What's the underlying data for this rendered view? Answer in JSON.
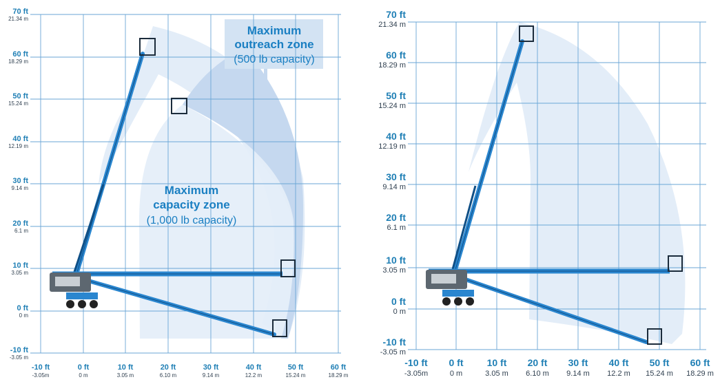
{
  "left_chart": {
    "y_labels": [
      {
        "ft": "70 ft",
        "m": "21.34 m"
      },
      {
        "ft": "60 ft",
        "m": "18.29 m"
      },
      {
        "ft": "50 ft",
        "m": "15.24 m"
      },
      {
        "ft": "40 ft",
        "m": "12.19 m"
      },
      {
        "ft": "30 ft",
        "m": "9.14 m"
      },
      {
        "ft": "20 ft",
        "m": "6.1 m"
      },
      {
        "ft": "10 ft",
        "m": "3.05 m"
      },
      {
        "ft": "0 ft",
        "m": "0 m"
      },
      {
        "ft": "-10 ft",
        "m": "-3.05 m"
      }
    ],
    "x_labels": [
      {
        "ft": "-10 ft",
        "m": "-3.05m"
      },
      {
        "ft": "0 ft",
        "m": "0 m"
      },
      {
        "ft": "10 ft",
        "m": "3.05 m"
      },
      {
        "ft": "20 ft",
        "m": "6.10 m"
      },
      {
        "ft": "30 ft",
        "m": "9.14 m"
      },
      {
        "ft": "40 ft",
        "m": "12.2 m"
      },
      {
        "ft": "50 ft",
        "m": "15.24 m"
      },
      {
        "ft": "60 ft",
        "m": "18.29 m"
      }
    ],
    "outreach_zone": {
      "line1": "Maximum",
      "line2": "outreach zone",
      "line3": "(500 lb capacity)"
    },
    "capacity_zone": {
      "line1": "Maximum",
      "line2": "capacity zone",
      "line3": "(1,000 lb capacity)"
    }
  },
  "right_chart": {
    "y_labels": [
      {
        "ft": "70 ft",
        "m": "21.34 m"
      },
      {
        "ft": "60 ft",
        "m": "18.29 m"
      },
      {
        "ft": "50 ft",
        "m": "15.24 m"
      },
      {
        "ft": "40 ft",
        "m": "12.19 m"
      },
      {
        "ft": "30 ft",
        "m": "9.14 m"
      },
      {
        "ft": "20 ft",
        "m": "6.1 m"
      },
      {
        "ft": "10 ft",
        "m": "3.05 m"
      },
      {
        "ft": "0 ft",
        "m": "0 m"
      },
      {
        "ft": "-10 ft",
        "m": "-3.05 m"
      }
    ],
    "x_labels": [
      {
        "ft": "-10 ft",
        "m": "-3.05m"
      },
      {
        "ft": "0 ft",
        "m": "0 m"
      },
      {
        "ft": "10 ft",
        "m": "3.05 m"
      },
      {
        "ft": "20 ft",
        "m": "6.10 m"
      },
      {
        "ft": "30 ft",
        "m": "9.14 m"
      },
      {
        "ft": "40 ft",
        "m": "12.2 m"
      },
      {
        "ft": "50 ft",
        "m": "15.24 m"
      },
      {
        "ft": "60 ft",
        "m": "18.29 m"
      }
    ]
  },
  "colors": {
    "grid": "#6aa6d6",
    "zone_light": "#e3edf8",
    "zone_dark": "#c5d8ef",
    "boom": "#2a86cf",
    "boom_dark": "#0f4f86",
    "label": "#1f7fb5"
  }
}
